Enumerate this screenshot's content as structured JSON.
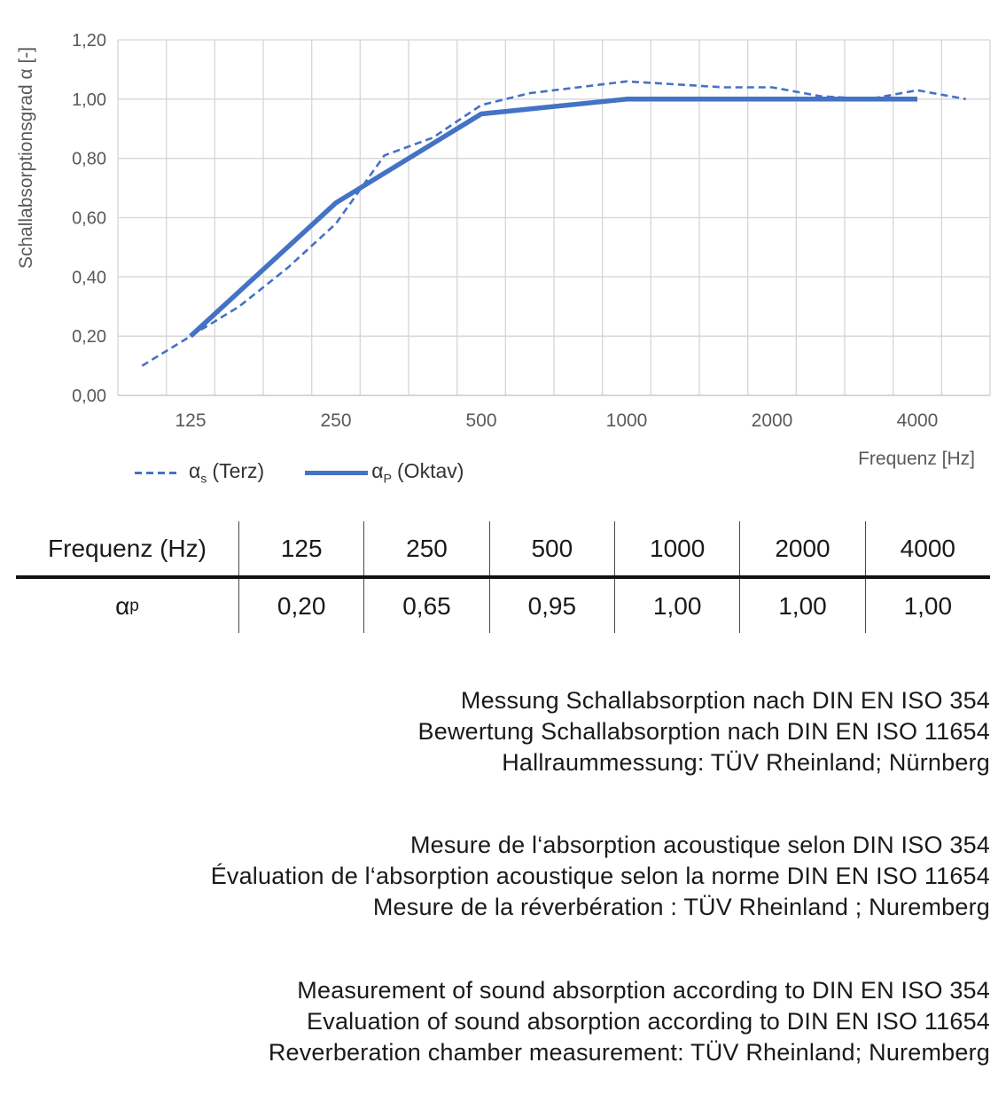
{
  "colors": {
    "series_blue": "#4472C4",
    "gridline": "#D6D6D6",
    "axis_line": "#BFBFBF",
    "axis_text": "#595959",
    "text": "#1A1A1A"
  },
  "chart_data": {
    "type": "line",
    "title": "",
    "ylabel": "Schallabsorptionsgrad α [-]",
    "xlabel": "Frequenz [Hz]",
    "ylim": [
      0.0,
      1.2
    ],
    "ytick_step": 0.2,
    "ytick_labels": [
      "0,00",
      "0,20",
      "0,40",
      "0,60",
      "0,80",
      "1,00",
      "1,20"
    ],
    "categories": [
      100,
      125,
      160,
      200,
      250,
      315,
      400,
      500,
      630,
      800,
      1000,
      1250,
      1600,
      2000,
      2500,
      3150,
      4000,
      5000
    ],
    "xtick_labels": [
      "125",
      "250",
      "500",
      "1000",
      "2000",
      "4000"
    ],
    "grid": true,
    "legend_position": "bottom-left",
    "series": [
      {
        "name": "αs (Terz)",
        "style": "dashed",
        "x": [
          100,
          125,
          160,
          200,
          250,
          315,
          400,
          500,
          630,
          800,
          1000,
          1250,
          1600,
          2000,
          2500,
          3150,
          4000,
          5000
        ],
        "values": [
          0.1,
          0.2,
          0.3,
          0.43,
          0.58,
          0.81,
          0.87,
          0.98,
          1.02,
          1.04,
          1.06,
          1.05,
          1.04,
          1.04,
          1.01,
          1.0,
          1.03,
          1.0
        ]
      },
      {
        "name": "αP (Oktav)",
        "style": "solid",
        "x": [
          125,
          250,
          500,
          1000,
          2000,
          4000
        ],
        "values": [
          0.2,
          0.65,
          0.95,
          1.0,
          1.0,
          1.0
        ]
      }
    ]
  },
  "legend": {
    "terz": {
      "alpha": "α",
      "sub": "s",
      "label": "(Terz)"
    },
    "oktav": {
      "alpha": "α",
      "sub": "P",
      "label": "(Oktav)"
    }
  },
  "table": {
    "header_label": "Frequenz (Hz)",
    "row_label": {
      "alpha": "α",
      "sub": "p"
    },
    "frequencies": [
      "125",
      "250",
      "500",
      "1000",
      "2000",
      "4000"
    ],
    "values": [
      "0,20",
      "0,65",
      "0,95",
      "1,00",
      "1,00",
      "1,00"
    ]
  },
  "notes": {
    "de": [
      "Messung Schallabsorption nach DIN EN ISO 354",
      "Bewertung Schallabsorption nach DIN EN ISO 11654",
      "Hallraummessung: TÜV Rheinland; Nürnberg"
    ],
    "fr": [
      "Mesure de l‘absorption acoustique selon DIN ISO 354",
      "Évaluation de l‘absorption acoustique selon la norme DIN EN ISO 11654",
      "Mesure de la réverbération : TÜV Rheinland ; Nuremberg"
    ],
    "en": [
      "Measurement of sound absorption according to DIN EN ISO 354",
      "Evaluation of sound absorption according to DIN EN ISO 11654",
      "Reverberation chamber measurement: TÜV Rheinland; Nuremberg"
    ]
  }
}
